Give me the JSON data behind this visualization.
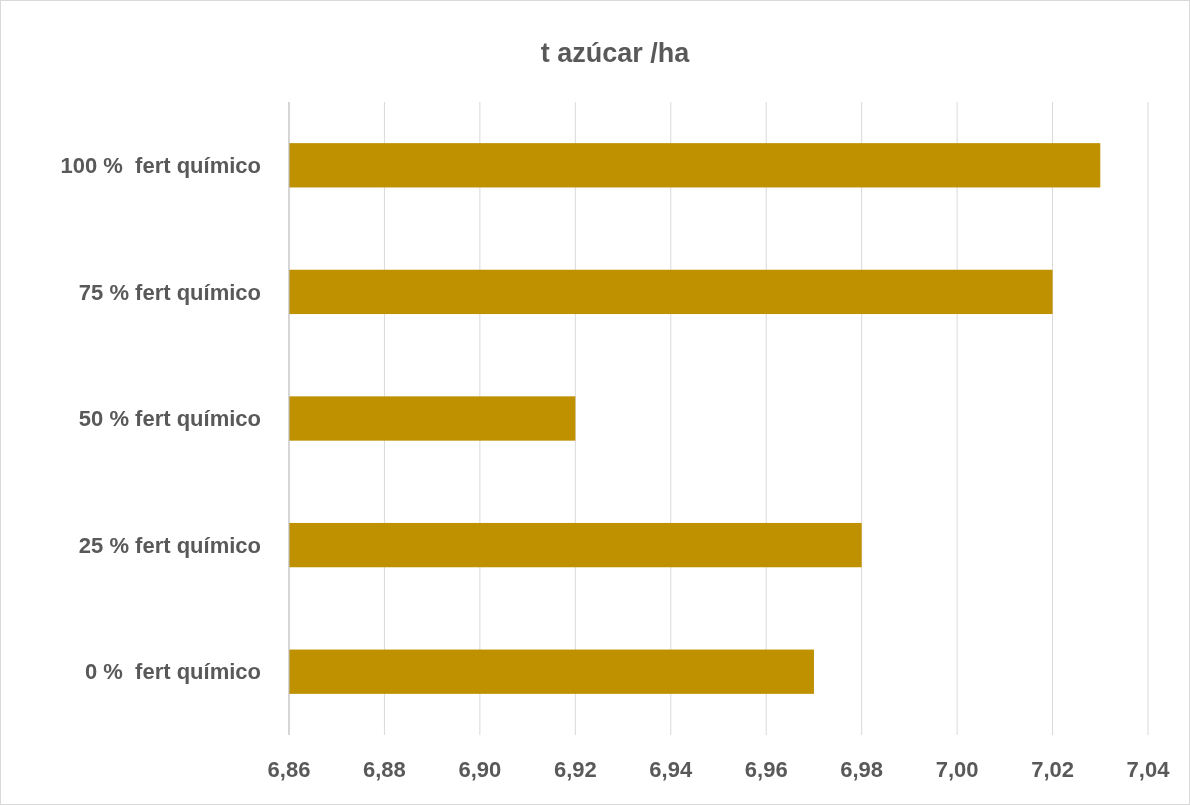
{
  "chart_data": {
    "type": "bar",
    "orientation": "horizontal",
    "title": "t azúcar /ha",
    "categories": [
      "100 %  fert químico",
      "75 % fert químico",
      "50 % fert químico",
      "25 % fert químico",
      "0 %  fert químico"
    ],
    "values": [
      7.03,
      7.02,
      6.92,
      6.98,
      6.97
    ],
    "color": "#bf9000",
    "xlim": [
      6.86,
      7.04
    ],
    "xticks": [
      {
        "value": 6.86,
        "label": "6,86"
      },
      {
        "value": 6.88,
        "label": "6,88"
      },
      {
        "value": 6.9,
        "label": "6,90"
      },
      {
        "value": 6.92,
        "label": "6,92"
      },
      {
        "value": 6.94,
        "label": "6,94"
      },
      {
        "value": 6.96,
        "label": "6,96"
      },
      {
        "value": 6.98,
        "label": "6,98"
      },
      {
        "value": 7.0,
        "label": "7,00"
      },
      {
        "value": 7.02,
        "label": "7,02"
      },
      {
        "value": 7.04,
        "label": "7,04"
      }
    ],
    "grid": "x"
  }
}
